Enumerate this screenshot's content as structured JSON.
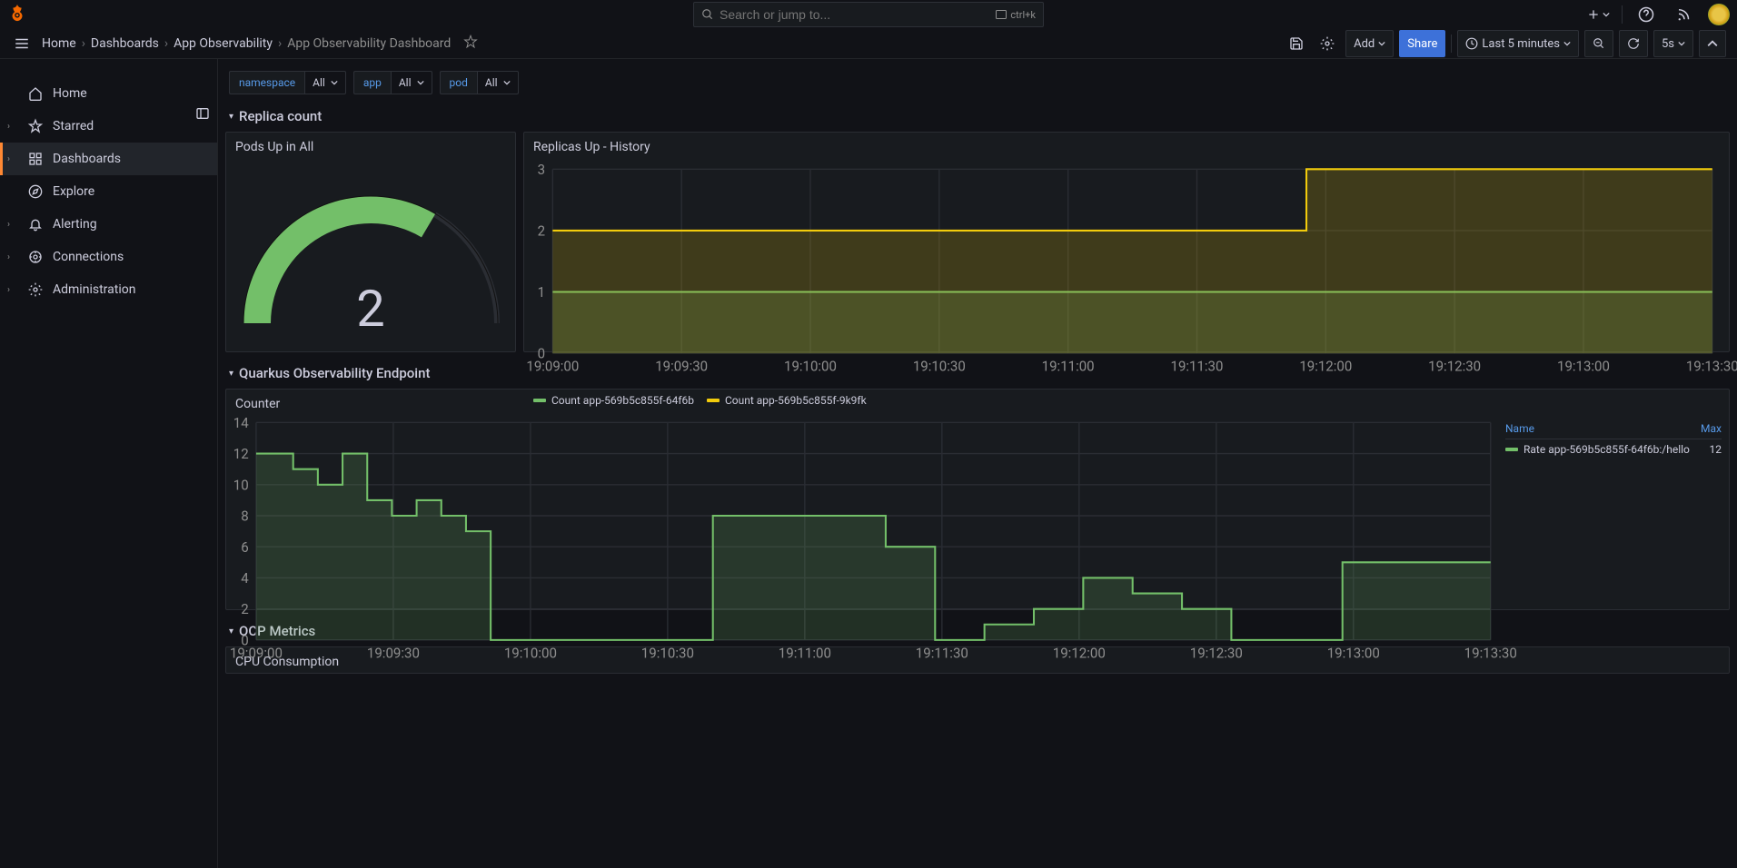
{
  "colors": {
    "bg": "#111217",
    "panel_bg": "#181b1f",
    "grid": "#2a2d33",
    "green": "#73bf69",
    "yellow": "#f2cc0c",
    "green_fill": "rgba(115,191,105,0.18)",
    "yellow_fill": "rgba(242,204,12,0.18)",
    "link": "#579ae9",
    "orange_accent": "#ff8833"
  },
  "search": {
    "placeholder": "Search or jump to...",
    "shortcut": "ctrl+k"
  },
  "breadcrumbs": [
    "Home",
    "Dashboards",
    "App Observability",
    "App Observability Dashboard"
  ],
  "toolbar": {
    "add": "Add",
    "share": "Share",
    "time_range": "Last 5 minutes",
    "refresh_interval": "5s"
  },
  "sidebar": {
    "items": [
      {
        "label": "Home",
        "icon": "home",
        "chev": false
      },
      {
        "label": "Starred",
        "icon": "star",
        "chev": true
      },
      {
        "label": "Dashboards",
        "icon": "grid",
        "chev": true,
        "active": true
      },
      {
        "label": "Explore",
        "icon": "compass",
        "chev": false
      },
      {
        "label": "Alerting",
        "icon": "bell",
        "chev": true
      },
      {
        "label": "Connections",
        "icon": "plug",
        "chev": true
      },
      {
        "label": "Administration",
        "icon": "gear",
        "chev": true
      }
    ]
  },
  "variables": [
    {
      "name": "namespace",
      "value": "All"
    },
    {
      "name": "app",
      "value": "All"
    },
    {
      "name": "pod",
      "value": "All"
    }
  ],
  "rows": {
    "replica": "Replica count",
    "quarkus": "Quarkus Observability Endpoint",
    "ocp": "OCP Metrics"
  },
  "gauge": {
    "title": "Pods Up in All",
    "value": "2",
    "color": "#73bf69",
    "track_color": "#2a2d33",
    "fraction": 0.67
  },
  "history": {
    "title": "Replicas Up - History",
    "ylim": [
      0,
      3
    ],
    "yticks": [
      0,
      1,
      2,
      3
    ],
    "xticks": [
      "19:09:00",
      "19:09:30",
      "19:10:00",
      "19:10:30",
      "19:11:00",
      "19:11:30",
      "19:12:00",
      "19:12:30",
      "19:13:00",
      "19:13:30"
    ],
    "series": [
      {
        "name": "Count app-569b5c855f-64f6b",
        "color": "#73bf69",
        "fill": "rgba(115,191,105,0.18)",
        "data": [
          [
            0,
            1
          ],
          [
            1,
            1
          ]
        ]
      },
      {
        "name": "Count app-569b5c855f-9k9fk",
        "color": "#f2cc0c",
        "fill": "rgba(242,204,12,0.18)",
        "data": [
          [
            0,
            1
          ],
          [
            0.63,
            1
          ],
          [
            0.65,
            2
          ],
          [
            1,
            2
          ]
        ]
      }
    ]
  },
  "counter": {
    "title": "Counter",
    "ylim": [
      0,
      14
    ],
    "yticks": [
      0,
      2,
      4,
      6,
      8,
      10,
      12,
      14
    ],
    "xticks": [
      "19:09:00",
      "19:09:30",
      "19:10:00",
      "19:10:30",
      "19:11:00",
      "19:11:30",
      "19:12:00",
      "19:12:30",
      "19:13:00",
      "19:13:30"
    ],
    "series_name": "Rate app-569b5c855f-64f6b:/hello",
    "series_max": "12",
    "color": "#73bf69",
    "fill": "rgba(115,191,105,0.18)",
    "table_headers": {
      "name": "Name",
      "max": "Max"
    },
    "data": [
      [
        0,
        12
      ],
      [
        0.03,
        11
      ],
      [
        0.05,
        10
      ],
      [
        0.07,
        12
      ],
      [
        0.09,
        9
      ],
      [
        0.11,
        8
      ],
      [
        0.13,
        9
      ],
      [
        0.15,
        8
      ],
      [
        0.17,
        7
      ],
      [
        0.19,
        0
      ],
      [
        0.35,
        0
      ],
      [
        0.37,
        8
      ],
      [
        0.49,
        8
      ],
      [
        0.51,
        6
      ],
      [
        0.55,
        0
      ],
      [
        0.59,
        1
      ],
      [
        0.63,
        2
      ],
      [
        0.67,
        4
      ],
      [
        0.71,
        3
      ],
      [
        0.73,
        3
      ],
      [
        0.75,
        2
      ],
      [
        0.79,
        0
      ],
      [
        0.87,
        0
      ],
      [
        0.88,
        5
      ],
      [
        1,
        5
      ]
    ]
  },
  "cpu": {
    "title": "CPU Consumption"
  }
}
